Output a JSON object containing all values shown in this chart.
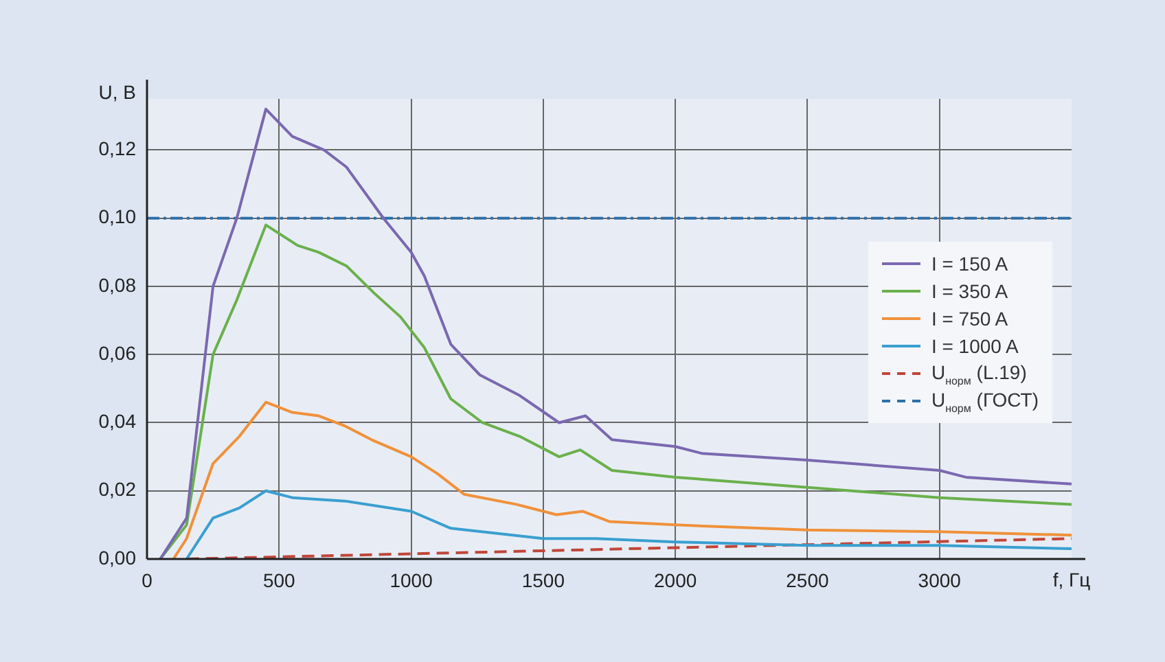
{
  "chart_data": {
    "type": "line",
    "xlabel": "f, Гц",
    "ylabel": "U, В",
    "xlim": [
      0,
      3500
    ],
    "xticks": [
      0,
      500,
      1000,
      1500,
      2000,
      2500,
      3000
    ],
    "ylim": [
      0,
      0.135
    ],
    "yticks": [
      {
        "value": 0,
        "label": "0,00"
      },
      {
        "value": 0.02,
        "label": "0,02"
      },
      {
        "value": 0.04,
        "label": "0,04"
      },
      {
        "value": 0.06,
        "label": "0,06"
      },
      {
        "value": 0.08,
        "label": "0,08"
      },
      {
        "value": 0.1,
        "label": "0,10"
      },
      {
        "value": 0.12,
        "label": "0,12"
      }
    ],
    "grid": true,
    "legend": "right",
    "marker": "none",
    "series": [
      {
        "name": "I = 150 A",
        "color": "#7b68b0",
        "x": [
          50,
          150,
          250,
          340,
          450,
          550,
          670,
          755,
          895,
          1000,
          1050,
          1150,
          1260,
          1410,
          1560,
          1660,
          1760,
          1880,
          2000,
          2100,
          2500,
          3000,
          3100,
          3500
        ],
        "values": [
          0,
          0.012,
          0.08,
          0.1,
          0.132,
          0.124,
          0.12,
          0.115,
          0.1,
          0.09,
          0.083,
          0.063,
          0.054,
          0.048,
          0.04,
          0.042,
          0.035,
          0.034,
          0.033,
          0.031,
          0.029,
          0.026,
          0.024,
          0.022
        ]
      },
      {
        "name": "I = 350 A",
        "color": "#6ab04c",
        "x": [
          50,
          150,
          250,
          340,
          450,
          570,
          650,
          755,
          860,
          960,
          1050,
          1150,
          1270,
          1410,
          1560,
          1640,
          1760,
          1880,
          2000,
          2500,
          3000,
          3500
        ],
        "values": [
          0,
          0.01,
          0.06,
          0.076,
          0.098,
          0.092,
          0.09,
          0.086,
          0.078,
          0.071,
          0.062,
          0.047,
          0.04,
          0.036,
          0.03,
          0.032,
          0.026,
          0.025,
          0.024,
          0.021,
          0.018,
          0.016
        ]
      },
      {
        "name": "I = 750 A",
        "color": "#f0913a",
        "x": [
          100,
          150,
          250,
          350,
          450,
          550,
          650,
          750,
          850,
          1000,
          1100,
          1200,
          1400,
          1550,
          1650,
          1750,
          2000,
          2500,
          3000,
          3500
        ],
        "values": [
          0,
          0.006,
          0.028,
          0.036,
          0.046,
          0.043,
          0.042,
          0.039,
          0.035,
          0.03,
          0.025,
          0.019,
          0.016,
          0.013,
          0.014,
          0.011,
          0.01,
          0.0085,
          0.008,
          0.007
        ]
      },
      {
        "name": "I = 1000 A",
        "color": "#3a9fd0",
        "x": [
          150,
          250,
          350,
          450,
          550,
          750,
          1000,
          1150,
          1500,
          1700,
          2000,
          2500,
          3000,
          3500
        ],
        "values": [
          0,
          0.012,
          0.015,
          0.02,
          0.018,
          0.017,
          0.014,
          0.009,
          0.006,
          0.006,
          0.005,
          0.004,
          0.004,
          0.003
        ]
      },
      {
        "name": "U$_{норм}$ (L.19)",
        "color": "#c0463a",
        "line_style": "dashed",
        "x": [
          150,
          3500
        ],
        "values": [
          0,
          0.006
        ]
      },
      {
        "name": "U$_{норм}$ (ГОСТ)",
        "color": "#2f6fa8",
        "line_style": "dashdot",
        "x": [
          0,
          3500
        ],
        "values": [
          0.1,
          0.1
        ]
      }
    ]
  }
}
